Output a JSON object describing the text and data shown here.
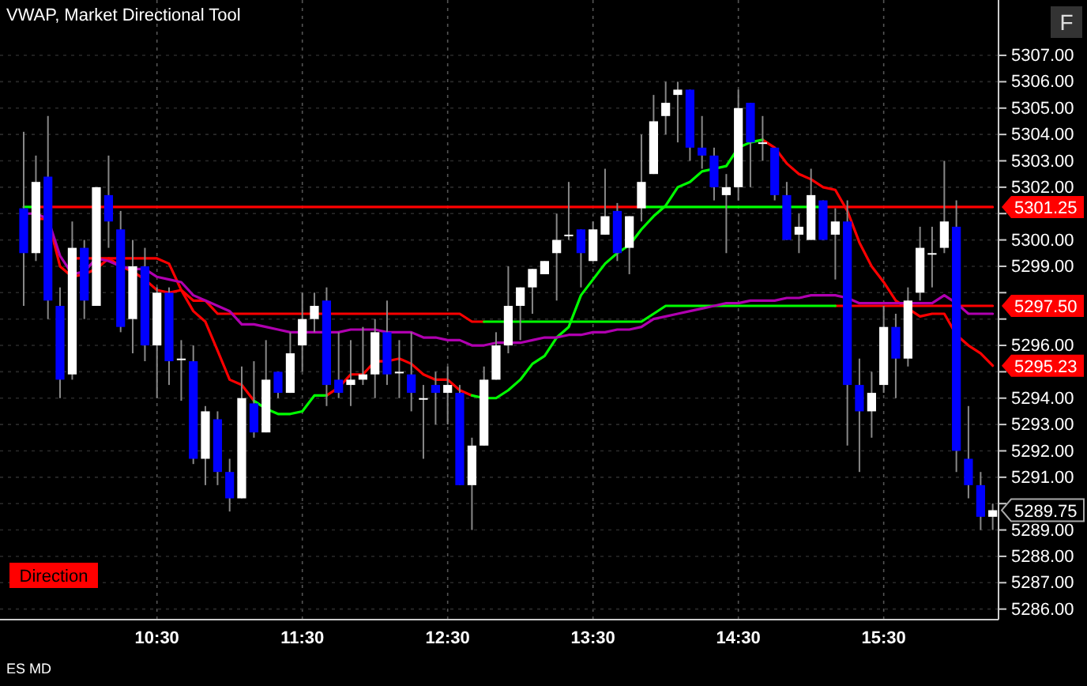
{
  "chart_data": {
    "type": "candlestick",
    "title": "VWAP, Market Directional Tool",
    "x": [
      9.583,
      9.667,
      9.75,
      9.833,
      9.917,
      10,
      10.083,
      10.167,
      10.25,
      10.333,
      10.417,
      10.5,
      10.583,
      10.667,
      10.75,
      10.833,
      10.917,
      11,
      11.083,
      11.167,
      11.25,
      11.333,
      11.417,
      11.5,
      11.583,
      11.667,
      11.75,
      11.833,
      11.917,
      12,
      12.083,
      12.167,
      12.25,
      12.333,
      12.417,
      12.5,
      12.583,
      12.667,
      12.75,
      12.833,
      12.917,
      13,
      13.083,
      13.167,
      13.25,
      13.333,
      13.417,
      13.5,
      13.583,
      13.667,
      13.75,
      13.833,
      13.917,
      14,
      14.083,
      14.167,
      14.25,
      14.333,
      14.417,
      14.5,
      14.583,
      14.667,
      14.75,
      14.833,
      14.917,
      15,
      15.083,
      15.167,
      15.25,
      15.333,
      15.417,
      15.5,
      15.583,
      15.667,
      15.75,
      15.833,
      15.917,
      16,
      16.083,
      16.167,
      16.25
    ],
    "ohlc": [
      [
        5301.2,
        5304.1,
        5297.5,
        5299.5
      ],
      [
        5299.5,
        5303.2,
        5299.2,
        5302.2
      ],
      [
        5302.4,
        5304.7,
        5297.0,
        5297.7
      ],
      [
        5297.5,
        5298.2,
        5294.0,
        5294.7
      ],
      [
        5294.9,
        5300.7,
        5294.7,
        5299.7
      ],
      [
        5299.7,
        5300.0,
        5297.0,
        5297.7
      ],
      [
        5297.5,
        5302.0,
        5297.5,
        5302.0
      ],
      [
        5301.7,
        5303.2,
        5299.7,
        5300.7
      ],
      [
        5300.4,
        5301.1,
        5296.5,
        5296.7
      ],
      [
        5297.0,
        5300.0,
        5295.7,
        5299.0
      ],
      [
        5299.0,
        5299.7,
        5295.4,
        5296.0
      ],
      [
        5296.0,
        5298.2,
        5294.0,
        5298.0
      ],
      [
        5298.0,
        5298.2,
        5294.5,
        5295.4
      ],
      [
        5295.5,
        5296.2,
        5293.9,
        5295.5
      ],
      [
        5295.4,
        5296.0,
        5291.5,
        5291.7
      ],
      [
        5291.7,
        5293.7,
        5290.7,
        5293.5
      ],
      [
        5293.2,
        5293.5,
        5290.7,
        5291.2
      ],
      [
        5291.2,
        5291.7,
        5289.7,
        5290.2
      ],
      [
        5290.2,
        5295.2,
        5290.2,
        5294.0
      ],
      [
        5293.8,
        5295.4,
        5292.5,
        5292.7
      ],
      [
        5292.7,
        5296.2,
        5292.7,
        5294.7
      ],
      [
        5295.0,
        5295.0,
        5294.0,
        5294.2
      ],
      [
        5294.2,
        5296.5,
        5294.2,
        5295.7
      ],
      [
        5296.0,
        5298.0,
        5295.0,
        5297.0
      ],
      [
        5297.0,
        5298.0,
        5296.5,
        5297.5
      ],
      [
        5297.7,
        5298.2,
        5293.7,
        5294.5
      ],
      [
        5294.7,
        5296.5,
        5294.0,
        5294.2
      ],
      [
        5294.5,
        5296.2,
        5293.7,
        5294.7
      ],
      [
        5294.7,
        5296.7,
        5294.5,
        5294.9
      ],
      [
        5294.9,
        5297.0,
        5294.0,
        5296.5
      ],
      [
        5296.5,
        5297.7,
        5294.5,
        5294.9
      ],
      [
        5295.0,
        5296.2,
        5294.0,
        5295.0
      ],
      [
        5294.9,
        5296.5,
        5293.5,
        5294.2
      ],
      [
        5294.0,
        5294.5,
        5291.7,
        5294.0
      ],
      [
        5294.5,
        5295.0,
        5293.0,
        5294.2
      ],
      [
        5294.2,
        5295.2,
        5293.0,
        5294.5
      ],
      [
        5294.2,
        5294.5,
        5290.7,
        5290.7
      ],
      [
        5290.7,
        5292.5,
        5289.0,
        5292.2
      ],
      [
        5292.2,
        5295.2,
        5292.2,
        5294.7
      ],
      [
        5294.7,
        5296.5,
        5294.7,
        5296.0
      ],
      [
        5296.0,
        5299.0,
        5295.7,
        5297.5
      ],
      [
        5297.5,
        5298.2,
        5296.2,
        5298.2
      ],
      [
        5298.2,
        5298.9,
        5297.2,
        5298.9
      ],
      [
        5298.7,
        5299.2,
        5298.7,
        5299.2
      ],
      [
        5299.5,
        5301.0,
        5297.7,
        5300.0
      ],
      [
        5300.2,
        5302.2,
        5300.0,
        5300.2
      ],
      [
        5300.4,
        5300.4,
        5298.2,
        5299.5
      ],
      [
        5299.2,
        5300.7,
        5299.2,
        5300.4
      ],
      [
        5300.2,
        5302.7,
        5300.2,
        5300.9
      ],
      [
        5301.1,
        5301.4,
        5299.2,
        5299.5
      ],
      [
        5299.7,
        5300.9,
        5298.7,
        5300.9
      ],
      [
        5301.2,
        5304.0,
        5300.7,
        5302.2
      ],
      [
        5302.5,
        5305.5,
        5302.5,
        5304.5
      ],
      [
        5304.7,
        5306.0,
        5304.0,
        5305.2
      ],
      [
        5305.5,
        5306.0,
        5303.7,
        5305.7
      ],
      [
        5305.7,
        5305.7,
        5303.0,
        5303.5
      ],
      [
        5303.5,
        5304.7,
        5302.7,
        5303.2
      ],
      [
        5303.2,
        5303.5,
        5301.5,
        5302.0
      ],
      [
        5301.7,
        5302.5,
        5299.5,
        5302.0
      ],
      [
        5302.0,
        5305.7,
        5301.5,
        5305.0
      ],
      [
        5305.2,
        5305.2,
        5302.0,
        5303.7
      ],
      [
        5303.7,
        5304.7,
        5303.0,
        5303.7
      ],
      [
        5303.5,
        5303.5,
        5301.5,
        5301.7
      ],
      [
        5301.7,
        5302.2,
        5300.0,
        5300.0
      ],
      [
        5300.2,
        5301.0,
        5299.5,
        5300.5
      ],
      [
        5300.0,
        5302.7,
        5300.0,
        5301.7
      ],
      [
        5301.5,
        5301.5,
        5300.0,
        5300.0
      ],
      [
        5300.2,
        5301.2,
        5298.5,
        5300.7
      ],
      [
        5300.7,
        5301.5,
        5292.2,
        5294.5
      ],
      [
        5294.5,
        5295.5,
        5291.2,
        5293.5
      ],
      [
        5293.5,
        5295.0,
        5292.5,
        5294.2
      ],
      [
        5294.5,
        5297.5,
        5294.2,
        5296.7
      ],
      [
        5296.7,
        5297.2,
        5294.0,
        5295.5
      ],
      [
        5295.5,
        5298.2,
        5295.2,
        5297.7
      ],
      [
        5298.0,
        5300.5,
        5297.7,
        5299.7
      ],
      [
        5299.5,
        5300.5,
        5298.2,
        5299.5
      ],
      [
        5299.7,
        5303.0,
        5299.5,
        5300.7
      ],
      [
        5300.5,
        5301.5,
        5291.2,
        5292.0
      ],
      [
        5291.7,
        5293.7,
        5290.2,
        5290.7
      ],
      [
        5290.7,
        5291.2,
        5289.0,
        5289.5
      ],
      [
        5289.5,
        5290.0,
        5289.0,
        5289.75
      ]
    ],
    "series": [
      {
        "type": "line",
        "color": "#ff0000",
        "values": [
          null,
          5301.25,
          5301.25,
          5301.25,
          5301.25,
          5301.25,
          5301.25,
          5301.25,
          5301.25,
          5301.25,
          5301.25,
          5301.25,
          5301.25,
          5301.25,
          5301.25,
          5301.25,
          5301.25,
          5301.25,
          5301.25,
          5301.25,
          5301.25,
          5301.25,
          5301.25,
          5301.25,
          5301.25,
          5301.25,
          5301.25,
          5301.25,
          5301.25,
          5301.25,
          5301.25,
          5301.25,
          5301.25,
          5301.25,
          5301.25,
          5301.25,
          5301.25,
          5301.25,
          5301.25,
          5301.25,
          5301.25,
          5301.25,
          5301.25,
          5301.25,
          5301.25,
          5301.25,
          5301.25,
          5301.25,
          5301.25,
          5301.25,
          5301.25,
          5301.25,
          null,
          null,
          null,
          null,
          null,
          null,
          null,
          null,
          null,
          null,
          null,
          null,
          null,
          null,
          5301.25,
          5301.25,
          5301.25,
          5301.25,
          5301.25,
          5301.25,
          5301.25,
          5301.25,
          5301.25,
          5301.25,
          5301.25,
          5301.25,
          5301.25,
          5301.25,
          5301.25
        ]
      },
      {
        "type": "line",
        "color": "#00ff00",
        "values": [
          5301.25,
          5301.25,
          null,
          null,
          null,
          null,
          null,
          null,
          null,
          null,
          null,
          null,
          null,
          null,
          null,
          null,
          null,
          null,
          null,
          null,
          null,
          null,
          null,
          null,
          null,
          null,
          null,
          null,
          null,
          null,
          null,
          null,
          null,
          null,
          null,
          null,
          null,
          null,
          null,
          null,
          null,
          null,
          null,
          null,
          null,
          null,
          null,
          null,
          null,
          null,
          null,
          5301.25,
          5301.25,
          5301.25,
          5301.25,
          5301.25,
          5301.25,
          5301.25,
          5301.25,
          5301.25,
          5301.25,
          5301.25,
          5301.25,
          5301.25,
          5301.25,
          5301.25,
          5301.25,
          null,
          null,
          null,
          null,
          null,
          null,
          null,
          null,
          null,
          null,
          null,
          null,
          null,
          null
        ]
      },
      {
        "type": "line",
        "color": "#ff0000",
        "values": [
          null,
          null,
          null,
          null,
          5299.3,
          5299.3,
          5299.3,
          5299.3,
          5299.3,
          5299.3,
          5299.3,
          5299.3,
          5299.1,
          5298.1,
          5297.7,
          5297.7,
          5297.2,
          5297.2,
          5297.2,
          5297.2,
          5297.2,
          5297.2,
          5297.2,
          5297.2,
          5297.2,
          5297.2,
          5297.2,
          5297.2,
          5297.2,
          5297.2,
          5297.2,
          5297.2,
          5297.2,
          5297.2,
          5297.2,
          5297.2,
          5297.2,
          5296.9,
          5296.9,
          null,
          null,
          null,
          null,
          null,
          null,
          null,
          null,
          null,
          null,
          null,
          null,
          null,
          null,
          null,
          null,
          null,
          null,
          null,
          null,
          null,
          null,
          null,
          null,
          null,
          null,
          null,
          null,
          5297.5,
          5297.5,
          5297.5,
          5297.5,
          5297.5,
          5297.5,
          5297.5,
          5297.5,
          5297.5,
          5297.5,
          5297.5,
          5297.5,
          5297.5,
          5297.5
        ]
      },
      {
        "type": "line",
        "color": "#00ff00",
        "values": [
          null,
          null,
          null,
          null,
          null,
          null,
          null,
          null,
          null,
          null,
          null,
          null,
          null,
          null,
          null,
          null,
          null,
          null,
          null,
          null,
          null,
          null,
          null,
          null,
          null,
          null,
          null,
          null,
          null,
          null,
          null,
          null,
          null,
          null,
          null,
          null,
          null,
          null,
          5296.9,
          5296.9,
          5296.9,
          5296.9,
          5296.9,
          5296.9,
          5296.9,
          5296.9,
          5296.9,
          5296.9,
          5296.9,
          5296.9,
          5296.9,
          5296.9,
          5297.2,
          5297.5,
          5297.5,
          5297.5,
          5297.5,
          5297.5,
          5297.5,
          5297.5,
          5297.5,
          5297.5,
          5297.5,
          5297.5,
          5297.5,
          5297.5,
          5297.5,
          5297.5,
          null,
          null,
          null,
          null,
          null,
          null,
          null,
          null,
          null,
          null,
          null,
          null,
          null
        ]
      },
      {
        "type": "line",
        "color": "#ff0000",
        "values": [
          null,
          5300.8,
          5300.8,
          5299.0,
          5298.6,
          5298.7,
          5298.9,
          5299.3,
          5299.0,
          5298.8,
          5298.5,
          5298.1,
          5298.0,
          5298.1,
          5297.3,
          5296.9,
          5295.8,
          5294.7,
          5294.5,
          5293.9,
          null,
          null,
          null,
          null,
          null,
          5294.1,
          5294.4,
          5294.9,
          5294.9,
          5295.4,
          5295.4,
          5295.5,
          5295.3,
          5294.9,
          5294.7,
          5294.7,
          5294.3,
          5294.1,
          null,
          null,
          null,
          null,
          null,
          null,
          null,
          null,
          null,
          null,
          null,
          null,
          null,
          null,
          null,
          null,
          null,
          null,
          null,
          null,
          null,
          null,
          null,
          5303.8,
          5303.5,
          5302.9,
          5302.5,
          5302.3,
          5302.0,
          5301.9,
          5301.1,
          5299.9,
          5299.0,
          5298.4,
          5297.7,
          5297.4,
          5297.1,
          5297.2,
          5297.2,
          5296.4,
          5296.0,
          5295.7,
          5295.23
        ]
      },
      {
        "type": "line",
        "color": "#00ff00",
        "values": [
          null,
          null,
          null,
          null,
          null,
          null,
          null,
          null,
          null,
          null,
          null,
          null,
          null,
          null,
          null,
          null,
          null,
          null,
          null,
          5293.9,
          5293.6,
          5293.4,
          5293.4,
          5293.5,
          5294.1,
          5294.1,
          null,
          null,
          null,
          null,
          null,
          null,
          null,
          null,
          null,
          null,
          null,
          5294.1,
          5294.0,
          5294.0,
          5294.3,
          5294.7,
          5295.3,
          5295.6,
          5296.3,
          5296.7,
          5297.9,
          5298.5,
          5299.1,
          5299.5,
          5299.8,
          5300.4,
          5300.9,
          5301.3,
          5302.0,
          5302.2,
          5302.6,
          5302.7,
          5302.8,
          5303.5,
          5303.7,
          5303.8,
          null,
          null,
          null,
          null,
          null,
          null,
          null,
          null,
          null,
          null,
          null,
          null,
          null,
          null,
          null,
          null,
          null,
          null,
          null
        ]
      },
      {
        "type": "line",
        "color": "#b000b0",
        "values": [
          5301.0,
          5301.0,
          5300.8,
          5299.4,
          5298.7,
          5298.8,
          5299.3,
          5299.2,
          5299.0,
          5298.9,
          5298.9,
          5298.6,
          5298.5,
          5298.4,
          5297.9,
          5297.7,
          5297.5,
          5297.3,
          5296.8,
          5296.8,
          5296.7,
          5296.6,
          5296.5,
          5296.5,
          5296.5,
          5296.5,
          5296.5,
          5296.6,
          5296.6,
          5296.6,
          5296.5,
          5296.5,
          5296.5,
          5296.3,
          5296.3,
          5296.2,
          5296.2,
          5296.0,
          5296.0,
          5296.1,
          5296.1,
          5296.1,
          5296.2,
          5296.3,
          5296.3,
          5296.4,
          5296.4,
          5296.5,
          5296.5,
          5296.6,
          5296.6,
          5296.7,
          5297.0,
          5297.1,
          5297.2,
          5297.3,
          5297.4,
          5297.5,
          5297.6,
          5297.6,
          5297.7,
          5297.7,
          5297.7,
          5297.8,
          5297.8,
          5297.9,
          5297.9,
          5297.9,
          5297.8,
          5297.6,
          5297.6,
          5297.6,
          5297.6,
          5297.6,
          5297.6,
          5297.6,
          5297.9,
          5297.6,
          5297.2,
          5297.2,
          5297.2
        ]
      }
    ],
    "xlim": [
      9.42,
      16.29
    ],
    "ylim": [
      5285.6,
      5309.1
    ],
    "xticks": [
      {
        "value": 10.5,
        "label": "10:30"
      },
      {
        "value": 11.5,
        "label": "11:30"
      },
      {
        "value": 12.5,
        "label": "12:30"
      },
      {
        "value": 13.5,
        "label": "13:30"
      },
      {
        "value": 14.5,
        "label": "14:30"
      },
      {
        "value": 15.5,
        "label": "15:30"
      }
    ],
    "yticks": [
      {
        "value": 5286,
        "label": "5286.00"
      },
      {
        "value": 5287,
        "label": "5287.00"
      },
      {
        "value": 5288,
        "label": "5288.00"
      },
      {
        "value": 5289,
        "label": "5289.00"
      },
      {
        "value": 5290,
        "label": null
      },
      {
        "value": 5291,
        "label": "5291.00"
      },
      {
        "value": 5292,
        "label": "5292.00"
      },
      {
        "value": 5293,
        "label": "5293.00"
      },
      {
        "value": 5294,
        "label": "5294.00"
      },
      {
        "value": 5295,
        "label": null
      },
      {
        "value": 5296,
        "label": "5296.00"
      },
      {
        "value": 5297,
        "label": null
      },
      {
        "value": 5298,
        "label": null
      },
      {
        "value": 5299,
        "label": "5299.00"
      },
      {
        "value": 5300,
        "label": "5300.00"
      },
      {
        "value": 5301,
        "label": null
      },
      {
        "value": 5302,
        "label": "5302.00"
      },
      {
        "value": 5303,
        "label": "5303.00"
      },
      {
        "value": 5304,
        "label": "5304.00"
      },
      {
        "value": 5305,
        "label": "5305.00"
      },
      {
        "value": 5306,
        "label": "5306.00"
      },
      {
        "value": 5307,
        "label": "5307.00"
      }
    ],
    "grid": true,
    "annotations": [
      "Direction",
      "ES MD",
      "F",
      "5301.25",
      "5297.50",
      "5295.23",
      "5289.75"
    ]
  }
}
